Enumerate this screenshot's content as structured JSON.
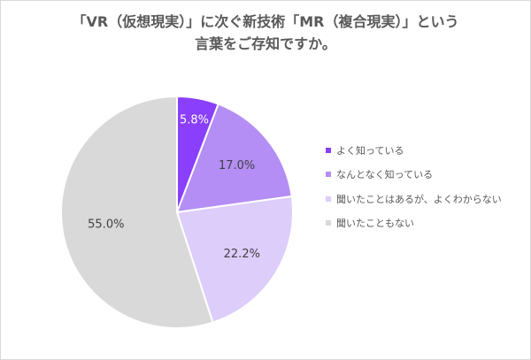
{
  "title": {
    "line1": "「VR（仮想現実）」に次ぐ新技術「MR（複合現実）」という",
    "line2": "言葉をご存知ですか。"
  },
  "chart_data": {
    "type": "pie",
    "start_angle_deg": 0,
    "direction": "clockwise",
    "legend_position": "right",
    "slices": [
      {
        "name": "よく知っている",
        "value": 5.8,
        "label": "5.8%",
        "color": "#8a3ffc",
        "label_color": "#ffffff"
      },
      {
        "name": "なんとなく知っている",
        "value": 17.0,
        "label": "17.0%",
        "color": "#b48ef5",
        "label_color": "#404040"
      },
      {
        "name": "聞いたことはあるが、よくわからない",
        "value": 22.2,
        "label": "22.2%",
        "color": "#dccdfb",
        "label_color": "#404040"
      },
      {
        "name": "聞いたこともない",
        "value": 55.0,
        "label": "55.0%",
        "color": "#d9d9d9",
        "label_color": "#404040"
      }
    ]
  }
}
